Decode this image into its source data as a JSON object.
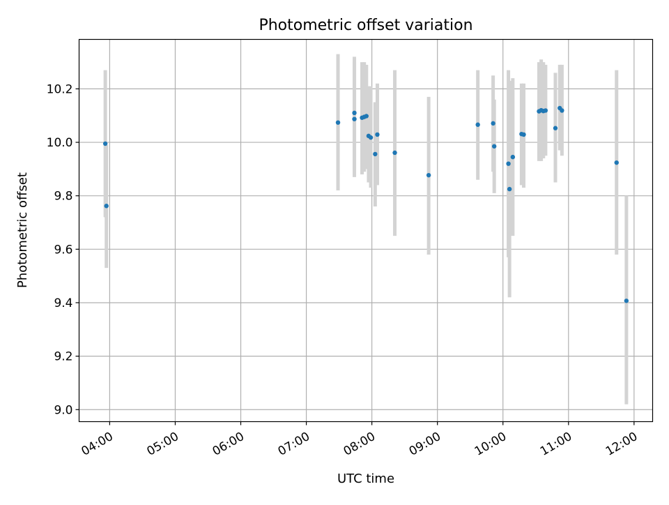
{
  "chart_data": {
    "type": "scatter",
    "title": "Photometric offset variation",
    "xlabel": "UTC time",
    "ylabel": "Photometric offset",
    "x_axis_type": "time",
    "xlim": [
      "03:32",
      "12:17"
    ],
    "ylim": [
      8.955,
      10.385
    ],
    "x_ticks": [
      "04:00",
      "05:00",
      "06:00",
      "07:00",
      "08:00",
      "09:00",
      "10:00",
      "11:00",
      "12:00"
    ],
    "y_ticks": [
      "9.0",
      "9.2",
      "9.4",
      "9.6",
      "9.8",
      "10.0",
      "10.2"
    ],
    "grid": true,
    "legend": "none",
    "marker_color": "#1f77b4",
    "errorbar_color": "#d3d3d3",
    "points": [
      {
        "x": "03:56",
        "y": 9.995,
        "yerr_low": 9.72,
        "yerr_high": 10.27
      },
      {
        "x": "03:57",
        "y": 9.762,
        "yerr_low": 9.53,
        "yerr_high": 9.99
      },
      {
        "x": "07:29",
        "y": 10.074,
        "yerr_low": 9.82,
        "yerr_high": 10.33
      },
      {
        "x": "07:44",
        "y": 10.11,
        "yerr_low": 9.9,
        "yerr_high": 10.32
      },
      {
        "x": "07:44",
        "y": 10.087,
        "yerr_low": 9.87,
        "yerr_high": 10.3
      },
      {
        "x": "07:51",
        "y": 10.092,
        "yerr_low": 9.88,
        "yerr_high": 10.3
      },
      {
        "x": "07:53",
        "y": 10.095,
        "yerr_low": 9.89,
        "yerr_high": 10.3
      },
      {
        "x": "07:55",
        "y": 10.098,
        "yerr_low": 9.9,
        "yerr_high": 10.29
      },
      {
        "x": "07:57",
        "y": 10.024,
        "yerr_low": 9.85,
        "yerr_high": 10.21
      },
      {
        "x": "07:59",
        "y": 10.018,
        "yerr_low": 9.83,
        "yerr_high": 10.21
      },
      {
        "x": "08:03",
        "y": 9.956,
        "yerr_low": 9.76,
        "yerr_high": 10.15
      },
      {
        "x": "08:05",
        "y": 10.029,
        "yerr_low": 9.84,
        "yerr_high": 10.22
      },
      {
        "x": "08:21",
        "y": 9.961,
        "yerr_low": 9.65,
        "yerr_high": 10.27
      },
      {
        "x": "08:52",
        "y": 9.877,
        "yerr_low": 9.58,
        "yerr_high": 10.17
      },
      {
        "x": "09:37",
        "y": 10.066,
        "yerr_low": 9.86,
        "yerr_high": 10.27
      },
      {
        "x": "09:51",
        "y": 10.071,
        "yerr_low": 9.89,
        "yerr_high": 10.25
      },
      {
        "x": "09:52",
        "y": 9.985,
        "yerr_low": 9.81,
        "yerr_high": 10.16
      },
      {
        "x": "10:05",
        "y": 9.92,
        "yerr_low": 9.57,
        "yerr_high": 10.27
      },
      {
        "x": "10:06",
        "y": 9.825,
        "yerr_low": 9.42,
        "yerr_high": 10.23
      },
      {
        "x": "10:09",
        "y": 9.945,
        "yerr_low": 9.65,
        "yerr_high": 10.24
      },
      {
        "x": "10:17",
        "y": 10.031,
        "yerr_low": 9.84,
        "yerr_high": 10.22
      },
      {
        "x": "10:19",
        "y": 10.029,
        "yerr_low": 9.83,
        "yerr_high": 10.22
      },
      {
        "x": "10:33",
        "y": 10.116,
        "yerr_low": 9.93,
        "yerr_high": 10.3
      },
      {
        "x": "10:35",
        "y": 10.12,
        "yerr_low": 9.93,
        "yerr_high": 10.31
      },
      {
        "x": "10:37",
        "y": 10.117,
        "yerr_low": 9.94,
        "yerr_high": 10.3
      },
      {
        "x": "10:39",
        "y": 10.119,
        "yerr_low": 9.95,
        "yerr_high": 10.29
      },
      {
        "x": "10:48",
        "y": 10.053,
        "yerr_low": 9.85,
        "yerr_high": 10.26
      },
      {
        "x": "10:52",
        "y": 10.128,
        "yerr_low": 9.97,
        "yerr_high": 10.29
      },
      {
        "x": "10:54",
        "y": 10.119,
        "yerr_low": 9.95,
        "yerr_high": 10.29
      },
      {
        "x": "11:44",
        "y": 9.924,
        "yerr_low": 9.58,
        "yerr_high": 10.27
      },
      {
        "x": "11:53",
        "y": 9.407,
        "yerr_low": 9.02,
        "yerr_high": 9.8
      }
    ]
  }
}
